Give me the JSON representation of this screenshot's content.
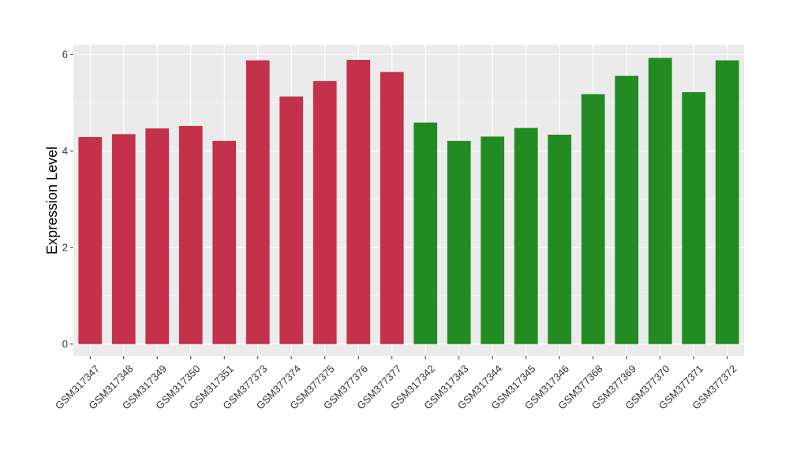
{
  "chart_data": {
    "type": "bar",
    "ylabel": "Expression Level",
    "xlabel": "",
    "ylim": [
      -0.25,
      6.2
    ],
    "yticks": [
      0,
      2,
      4,
      6
    ],
    "grid": true,
    "categories": [
      "GSM317347",
      "GSM317348",
      "GSM317349",
      "GSM317350",
      "GSM317351",
      "GSM377373",
      "GSM377374",
      "GSM377375",
      "GSM377376",
      "GSM377377",
      "GSM317342",
      "GSM317343",
      "GSM317344",
      "GSM317345",
      "GSM317346",
      "GSM377368",
      "GSM377369",
      "GSM377370",
      "GSM377371",
      "GSM377372"
    ],
    "values": [
      4.29,
      4.35,
      4.47,
      4.52,
      4.21,
      5.88,
      5.13,
      5.45,
      5.89,
      5.64,
      4.59,
      4.21,
      4.3,
      4.48,
      4.34,
      5.18,
      5.56,
      5.93,
      5.22,
      5.88
    ],
    "bar_colors": [
      "#c4314b",
      "#c4314b",
      "#c4314b",
      "#c4314b",
      "#c4314b",
      "#c4314b",
      "#c4314b",
      "#c4314b",
      "#c4314b",
      "#c4314b",
      "#228b22",
      "#228b22",
      "#228b22",
      "#228b22",
      "#228b22",
      "#228b22",
      "#228b22",
      "#228b22",
      "#228b22",
      "#228b22"
    ],
    "panel_background": "#ebebeb",
    "grid_color": "#ffffff"
  }
}
